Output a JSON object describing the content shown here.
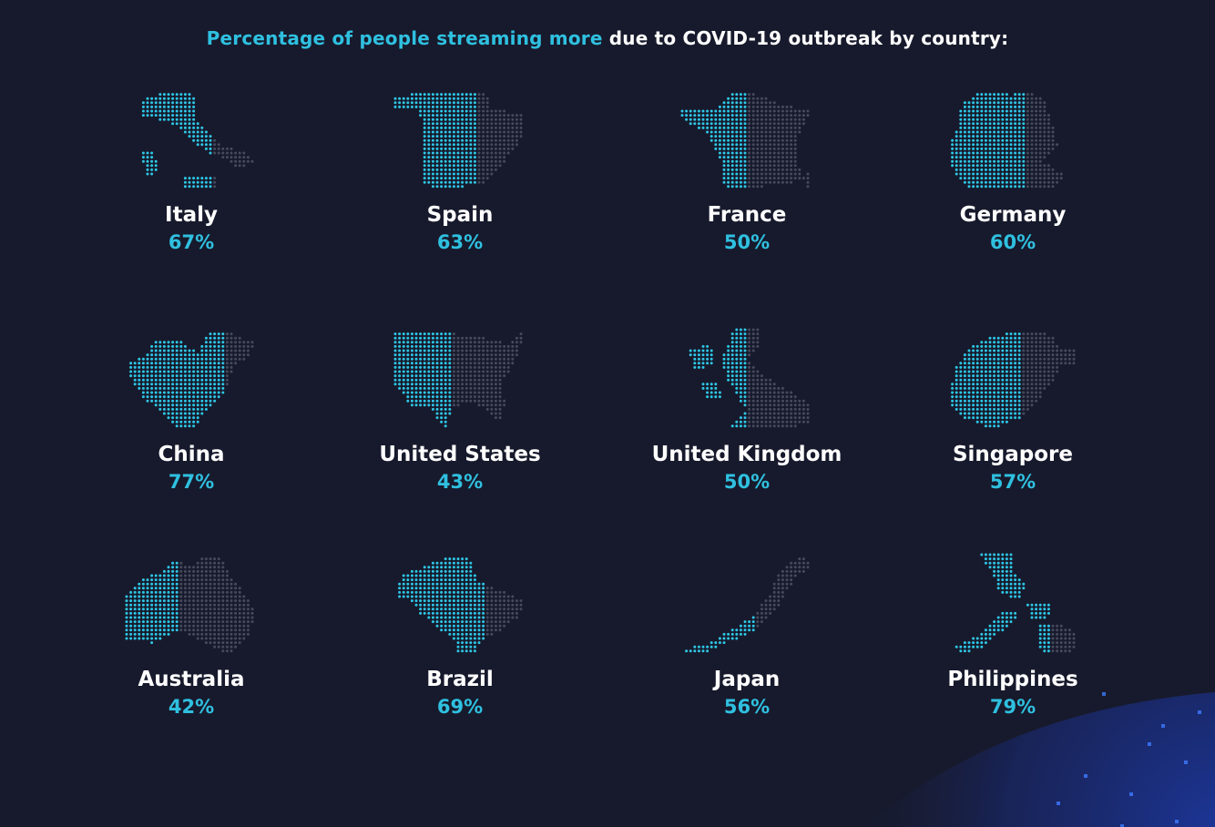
{
  "title": {
    "highlight": "Percentage of people streaming more",
    "rest": " due to COVID-19 outbreak by country:"
  },
  "colors": {
    "background": "#171a2c",
    "accent": "#2fc0e0",
    "filled_dot": "#2ec7e6",
    "empty_dot": "#454a5c",
    "label": "#ffffff"
  },
  "chart_data": {
    "type": "pictogram",
    "unit": "%",
    "countries": [
      {
        "name": "Italy",
        "value": 67,
        "label": "67%",
        "shape": "italy"
      },
      {
        "name": "Spain",
        "value": 63,
        "label": "63%",
        "shape": "spain"
      },
      {
        "name": "France",
        "value": 50,
        "label": "50%",
        "shape": "france"
      },
      {
        "name": "Germany",
        "value": 60,
        "label": "60%",
        "shape": "germany"
      },
      {
        "name": "China",
        "value": 77,
        "label": "77%",
        "shape": "china"
      },
      {
        "name": "United States",
        "value": 43,
        "label": "43%",
        "shape": "usa"
      },
      {
        "name": "United Kingdom",
        "value": 50,
        "label": "50%",
        "shape": "uk"
      },
      {
        "name": "Singapore",
        "value": 57,
        "label": "57%",
        "shape": "singapore"
      },
      {
        "name": "Australia",
        "value": 42,
        "label": "42%",
        "shape": "australia"
      },
      {
        "name": "Brazil",
        "value": 69,
        "label": "69%",
        "shape": "brazil"
      },
      {
        "name": "Japan",
        "value": 56,
        "label": "56%",
        "shape": "japan"
      },
      {
        "name": "Philippines",
        "value": 79,
        "label": "79%",
        "shape": "philippines"
      }
    ]
  }
}
